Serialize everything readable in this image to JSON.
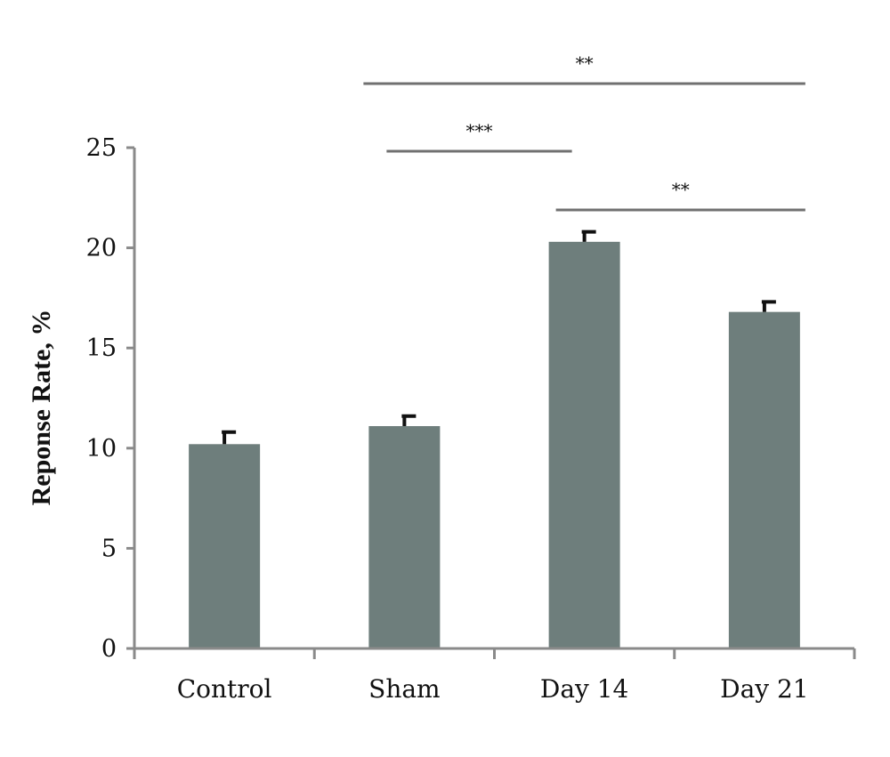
{
  "chart_data": {
    "type": "bar",
    "title": "",
    "xlabel": "",
    "ylabel": "Reponse Rate, %",
    "ylim": [
      0,
      25
    ],
    "yticks": [
      0,
      5,
      10,
      15,
      20,
      25
    ],
    "categories": [
      "Control",
      "Sham",
      "Day 14",
      "Day 21"
    ],
    "values": [
      10.2,
      11.1,
      20.3,
      16.8
    ],
    "errors": [
      0.6,
      0.5,
      0.5,
      0.5
    ],
    "grid": false,
    "colors": {
      "bar": "#6e7e7c",
      "axis": "#8a8a8a",
      "error": "#111111",
      "sig_line": "#707070"
    },
    "significance": [
      {
        "from": "Sham",
        "to": "Day 21",
        "label": "**",
        "level": 0
      },
      {
        "from": "Sham",
        "to": "Day 14",
        "label": "***",
        "level": 1
      },
      {
        "from": "Day 14",
        "to": "Day 21",
        "label": "**",
        "level": 2
      }
    ]
  }
}
